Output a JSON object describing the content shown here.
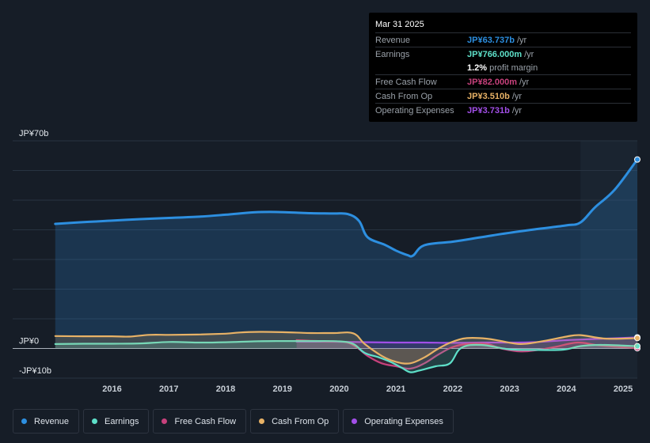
{
  "colors": {
    "revenue": "#2d8fe0",
    "earnings": "#5ee0c9",
    "free_cash_flow": "#c7417c",
    "cash_from_op": "#e8b266",
    "operating_expenses": "#a24fe8",
    "background": "#161d27"
  },
  "tooltip": {
    "date": "Mar 31 2025",
    "rows": [
      {
        "label": "Revenue",
        "value": "JP¥63.737b",
        "unit": "/yr",
        "color": "#2d8fe0"
      },
      {
        "label": "Earnings",
        "value": "JP¥766.000m",
        "unit": "/yr",
        "color": "#5ee0c9"
      },
      {
        "label": "Free Cash Flow",
        "value": "JP¥82.000m",
        "unit": "/yr",
        "color": "#c7417c"
      },
      {
        "label": "Cash From Op",
        "value": "JP¥3.510b",
        "unit": "/yr",
        "color": "#e8b266"
      },
      {
        "label": "Operating Expenses",
        "value": "JP¥3.731b",
        "unit": "/yr",
        "color": "#a24fe8"
      }
    ],
    "profit_margin_value": "1.2%",
    "profit_margin_label": "profit margin"
  },
  "legend": [
    {
      "label": "Revenue",
      "color": "#2d8fe0"
    },
    {
      "label": "Earnings",
      "color": "#5ee0c9"
    },
    {
      "label": "Free Cash Flow",
      "color": "#c7417c"
    },
    {
      "label": "Cash From Op",
      "color": "#e8b266"
    },
    {
      "label": "Operating Expenses",
      "color": "#a24fe8"
    }
  ],
  "chart_data": {
    "type": "line",
    "y_tick_labels": [
      "JP¥70b",
      "JP¥0",
      "-JP¥10b"
    ],
    "ylim": [
      -10,
      70
    ],
    "y_ticks": [
      70,
      0,
      -10
    ],
    "x_tick_labels": [
      "2016",
      "2017",
      "2018",
      "2019",
      "2020",
      "2021",
      "2022",
      "2023",
      "2024",
      "2025"
    ],
    "x_ticks": [
      2016,
      2017,
      2018,
      2019,
      2020,
      2021,
      2022,
      2023,
      2024,
      2025
    ],
    "xlim": [
      2014.25,
      2025.25
    ],
    "highlight_start": 2024.25,
    "grid": true,
    "legend_position": "bottom",
    "series": [
      {
        "name": "Revenue",
        "key": "revenue",
        "fill": true,
        "points": [
          [
            2015.0,
            42.0
          ],
          [
            2015.5,
            42.6
          ],
          [
            2016.0,
            43.1
          ],
          [
            2016.5,
            43.6
          ],
          [
            2017.0,
            44.0
          ],
          [
            2017.5,
            44.4
          ],
          [
            2018.0,
            45.1
          ],
          [
            2018.5,
            45.9
          ],
          [
            2018.9,
            46.0
          ],
          [
            2019.5,
            45.6
          ],
          [
            2019.9,
            45.5
          ],
          [
            2020.15,
            45.3
          ],
          [
            2020.35,
            43.0
          ],
          [
            2020.5,
            37.5
          ],
          [
            2020.8,
            35.0
          ],
          [
            2021.0,
            33.0
          ],
          [
            2021.2,
            31.5
          ],
          [
            2021.3,
            31.3
          ],
          [
            2021.5,
            34.8
          ],
          [
            2022.0,
            36.0
          ],
          [
            2022.5,
            37.5
          ],
          [
            2023.0,
            39.0
          ],
          [
            2023.5,
            40.3
          ],
          [
            2024.0,
            41.5
          ],
          [
            2024.25,
            42.5
          ],
          [
            2024.5,
            47.5
          ],
          [
            2024.85,
            53.5
          ],
          [
            2025.25,
            63.7
          ]
        ]
      },
      {
        "name": "Earnings",
        "key": "earnings",
        "points": [
          [
            2015.0,
            1.5
          ],
          [
            2015.5,
            1.6
          ],
          [
            2016.0,
            1.6
          ],
          [
            2016.5,
            1.7
          ],
          [
            2017.0,
            2.2
          ],
          [
            2017.5,
            2.0
          ],
          [
            2018.0,
            2.1
          ],
          [
            2018.5,
            2.4
          ],
          [
            2019.0,
            2.5
          ],
          [
            2019.5,
            2.5
          ],
          [
            2020.0,
            2.4
          ],
          [
            2020.25,
            1.5
          ],
          [
            2020.45,
            -1.5
          ],
          [
            2020.7,
            -3.0
          ],
          [
            2020.9,
            -4.5
          ],
          [
            2021.1,
            -6.5
          ],
          [
            2021.25,
            -8.0
          ],
          [
            2021.4,
            -7.5
          ],
          [
            2021.7,
            -6.0
          ],
          [
            2021.95,
            -5.0
          ],
          [
            2022.15,
            0.2
          ],
          [
            2022.5,
            1.2
          ],
          [
            2023.0,
            -0.3
          ],
          [
            2023.5,
            -0.5
          ],
          [
            2023.95,
            -0.4
          ],
          [
            2024.25,
            0.8
          ],
          [
            2024.6,
            1.2
          ],
          [
            2025.25,
            0.766
          ]
        ]
      },
      {
        "name": "Free Cash Flow",
        "key": "free_cash_flow",
        "points": [
          [
            2019.25,
            2.8
          ],
          [
            2019.5,
            2.6
          ],
          [
            2019.8,
            2.4
          ],
          [
            2020.1,
            2.2
          ],
          [
            2020.3,
            0.5
          ],
          [
            2020.5,
            -2.5
          ],
          [
            2020.75,
            -5.0
          ],
          [
            2021.0,
            -6.0
          ],
          [
            2021.25,
            -6.8
          ],
          [
            2021.5,
            -5.0
          ],
          [
            2021.75,
            -2.0
          ],
          [
            2022.0,
            0.5
          ],
          [
            2022.25,
            1.5
          ],
          [
            2022.6,
            1.5
          ],
          [
            2022.85,
            0.0
          ],
          [
            2023.2,
            -1.0
          ],
          [
            2023.5,
            -0.5
          ],
          [
            2023.8,
            0.5
          ],
          [
            2024.2,
            2.0
          ],
          [
            2024.6,
            1.0
          ],
          [
            2025.25,
            0.082
          ]
        ]
      },
      {
        "name": "Cash From Op",
        "key": "cash_from_op",
        "points": [
          [
            2015.0,
            4.2
          ],
          [
            2015.5,
            4.1
          ],
          [
            2016.0,
            4.1
          ],
          [
            2016.3,
            4.0
          ],
          [
            2016.65,
            4.6
          ],
          [
            2017.0,
            4.6
          ],
          [
            2017.5,
            4.7
          ],
          [
            2018.0,
            5.0
          ],
          [
            2018.25,
            5.4
          ],
          [
            2018.6,
            5.6
          ],
          [
            2019.0,
            5.5
          ],
          [
            2019.5,
            5.2
          ],
          [
            2019.9,
            5.2
          ],
          [
            2020.25,
            5.1
          ],
          [
            2020.45,
            1.5
          ],
          [
            2020.75,
            -2.5
          ],
          [
            2021.0,
            -4.5
          ],
          [
            2021.25,
            -5.0
          ],
          [
            2021.5,
            -3.0
          ],
          [
            2021.75,
            0.0
          ],
          [
            2022.0,
            2.3
          ],
          [
            2022.25,
            3.5
          ],
          [
            2022.6,
            3.3
          ],
          [
            2022.85,
            2.5
          ],
          [
            2023.2,
            1.5
          ],
          [
            2023.6,
            2.5
          ],
          [
            2024.0,
            4.0
          ],
          [
            2024.25,
            4.5
          ],
          [
            2024.7,
            3.3
          ],
          [
            2025.25,
            3.51
          ]
        ]
      },
      {
        "name": "Operating Expenses",
        "key": "operating_expenses",
        "points": [
          [
            2019.25,
            2.3
          ],
          [
            2019.7,
            2.3
          ],
          [
            2020.2,
            2.2
          ],
          [
            2020.5,
            2.1
          ],
          [
            2021.0,
            2.0
          ],
          [
            2021.5,
            2.0
          ],
          [
            2022.0,
            1.9
          ],
          [
            2022.5,
            2.0
          ],
          [
            2023.0,
            2.0
          ],
          [
            2023.5,
            2.2
          ],
          [
            2024.0,
            2.8
          ],
          [
            2024.5,
            3.2
          ],
          [
            2025.25,
            3.731
          ]
        ]
      }
    ]
  }
}
